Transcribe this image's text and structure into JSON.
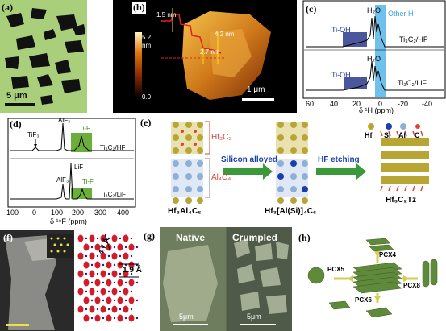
{
  "panels": {
    "a": {
      "label": "(a)",
      "scale": "5 μm"
    },
    "b": {
      "label": "(b)",
      "cbar_max": "5.2",
      "cbar_unit": "nm",
      "cbar_min": "0.0",
      "h1": "1.5 nm",
      "h2": "2.7 nm",
      "h3": "4.2 nm",
      "scale": "1 μm"
    },
    "c": {
      "label": "(c)",
      "peak": "H₂O",
      "tioh": "Ti-OH",
      "other": "Other H",
      "trace1": "Ti₃C₂/HF",
      "trace2": "Ti₃C₂/LiF",
      "xticks": [
        "60",
        "40",
        "20",
        "0",
        "-20",
        "-40"
      ],
      "xlabel": "δ ¹H (ppm)"
    },
    "d": {
      "label": "(d)",
      "tif3": "TiF₃",
      "alf3_top": "AlF₃",
      "tif_top": "Ti-F",
      "trace1": "Ti₃C₂/HF",
      "lif": "LiF",
      "alf3_bot": "AlF₃",
      "tif_bot": "Ti-F",
      "trace2": "Ti₃C₂/LiF",
      "xticks": [
        "100",
        "0",
        "-100",
        "-200",
        "-300",
        "-400"
      ],
      "xlabel": "δ ¹⁹F (ppm)"
    },
    "e": {
      "label": "(e)",
      "hf3c2": "Hf₃C₂",
      "al4c4": "Al₄C₄",
      "arrow1": "Silicon alloyed",
      "arrow2": "HF etching",
      "legend": [
        "Hf",
        "Si",
        "Al",
        "C"
      ],
      "m1": "Hf₃Al₄C₆",
      "m2": "Hf₃[Al(Si)]₄C₆",
      "m3": "Hf₃C₂Tz"
    },
    "f": {
      "label": "(f)",
      "d1": "4.7 Å",
      "d2": "1.9 Å"
    },
    "g": {
      "label": "(g)",
      "native": "Native",
      "crumpled": "Crumpled",
      "scale1": "5μm",
      "scale2": "5μm"
    },
    "h": {
      "label": "(h)",
      "pcx4": "PCX4",
      "pcx5": "PCX5",
      "pcx8": "PCX8",
      "pcx6": "PCX6"
    }
  },
  "colors": {
    "green_bg": "#a9cf7a",
    "flake": "#111111",
    "ir_blue": "#55b6e6",
    "dark_blue": "#2b3a8c",
    "tif_green": "#6bae3b",
    "hf_olive": "#b7a534",
    "al_blue": "#8db0d8",
    "c_red": "#e0413a",
    "arrow_green": "#3a9a3a"
  }
}
